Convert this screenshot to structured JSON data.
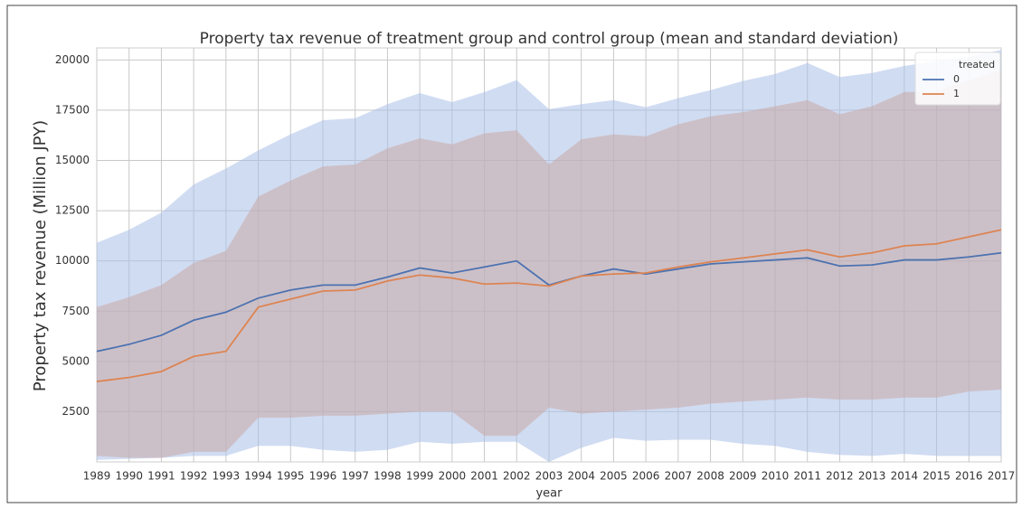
{
  "chart_data": {
    "type": "line",
    "title": "Property tax revenue of treatment group and control group (mean and standard deviation)",
    "x_label": "year",
    "y_label": "Property tax revenue (Million JPY)",
    "legend_title": "treated",
    "legend_position": "upper right",
    "grid": true,
    "x": [
      1989,
      1990,
      1991,
      1992,
      1993,
      1994,
      1995,
      1996,
      1997,
      1998,
      1999,
      2000,
      2001,
      2002,
      2003,
      2004,
      2005,
      2006,
      2007,
      2008,
      2009,
      2010,
      2011,
      2012,
      2013,
      2014,
      2015,
      2016,
      2017
    ],
    "xlim": [
      1989,
      2017
    ],
    "xticks": [
      1989,
      1990,
      1991,
      1992,
      1993,
      1994,
      1995,
      1996,
      1997,
      1998,
      1999,
      2000,
      2001,
      2002,
      2003,
      2004,
      2005,
      2006,
      2007,
      2008,
      2009,
      2010,
      2011,
      2012,
      2013,
      2014,
      2015,
      2016,
      2017
    ],
    "ylim": [
      0,
      20600
    ],
    "yticks": [
      2500,
      5000,
      7500,
      10000,
      12500,
      15000,
      17500,
      20000
    ],
    "series": [
      {
        "name": "0",
        "color": "#4c72b0",
        "band_color": "#a9c0e8",
        "values": [
          5500,
          5850,
          6300,
          7050,
          7450,
          8150,
          8550,
          8800,
          8800,
          9200,
          9650,
          9400,
          9700,
          10000,
          8800,
          9250,
          9600,
          9350,
          9600,
          9850,
          9950,
          10050,
          10150,
          9750,
          9800,
          10050,
          10050,
          10200,
          10400
        ],
        "upper": [
          10900,
          11550,
          12400,
          13800,
          14600,
          15500,
          16300,
          17000,
          17100,
          17800,
          18350,
          17900,
          18400,
          19000,
          17550,
          17800,
          18000,
          17650,
          18100,
          18500,
          18950,
          19300,
          19850,
          19150,
          19350,
          19700,
          19950,
          20150,
          20500
        ],
        "lower": [
          100,
          150,
          200,
          300,
          300,
          800,
          800,
          600,
          500,
          600,
          1000,
          900,
          1000,
          1000,
          0,
          700,
          1200,
          1050,
          1100,
          1100,
          900,
          800,
          500,
          350,
          300,
          400,
          300,
          300,
          300
        ]
      },
      {
        "name": "1",
        "color": "#dd8452",
        "band_color": "#c9a9a6",
        "values": [
          4000,
          4200,
          4500,
          5250,
          5500,
          7700,
          8100,
          8500,
          8550,
          9000,
          9300,
          9150,
          8850,
          8900,
          8750,
          9250,
          9350,
          9400,
          9700,
          9950,
          10150,
          10350,
          10550,
          10200,
          10400,
          10750,
          10850,
          11200,
          11550
        ],
        "upper": [
          7700,
          8200,
          8800,
          9900,
          10500,
          13200,
          14000,
          14700,
          14800,
          15600,
          16100,
          15800,
          16350,
          16500,
          14800,
          16050,
          16300,
          16200,
          16800,
          17200,
          17400,
          17700,
          18000,
          17300,
          17700,
          18400,
          18450,
          19000,
          19500
        ],
        "lower": [
          300,
          200,
          200,
          500,
          500,
          2200,
          2200,
          2300,
          2300,
          2400,
          2500,
          2500,
          1300,
          1300,
          2700,
          2400,
          2500,
          2600,
          2700,
          2900,
          3000,
          3100,
          3200,
          3100,
          3100,
          3200,
          3200,
          3500,
          3600
        ]
      }
    ]
  }
}
